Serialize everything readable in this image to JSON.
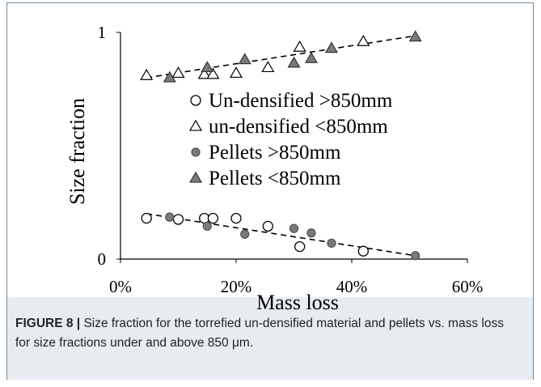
{
  "figure": {
    "caption_label": "FIGURE 8 |",
    "caption_text": "Size fraction for the torrefied un-densified material and pellets vs. mass loss for size fractions under and above 850 μm."
  },
  "chart_data": {
    "type": "scatter",
    "xlabel": "Mass loss",
    "ylabel": "Size fraction",
    "xlim": [
      0,
      60
    ],
    "ylim": [
      0,
      1
    ],
    "x_ticks": [
      "0%",
      "20%",
      "40%",
      "60%"
    ],
    "x_tick_values": [
      0,
      20,
      40,
      60
    ],
    "y_ticks": [
      "0",
      "1"
    ],
    "y_tick_values": [
      0,
      1
    ],
    "grid": false,
    "legend_position": "center",
    "series": [
      {
        "name": "Un-densified >850mm",
        "marker": "circle-open",
        "color": "#000000",
        "points": [
          [
            4.5,
            0.18
          ],
          [
            10,
            0.175
          ],
          [
            14.5,
            0.18
          ],
          [
            16,
            0.18
          ],
          [
            20,
            0.18
          ],
          [
            25.5,
            0.145
          ],
          [
            31,
            0.055
          ],
          [
            42,
            0.035
          ]
        ]
      },
      {
        "name": "un-densified <850mm",
        "marker": "triangle-open",
        "color": "#000000",
        "points": [
          [
            4.5,
            0.81
          ],
          [
            10,
            0.82
          ],
          [
            14.5,
            0.815
          ],
          [
            16,
            0.815
          ],
          [
            20,
            0.82
          ],
          [
            25.5,
            0.845
          ],
          [
            31,
            0.935
          ],
          [
            42,
            0.96
          ]
        ]
      },
      {
        "name": "Pellets >850mm",
        "marker": "circle-filled",
        "color": "#7a7a7a",
        "points": [
          [
            8.5,
            0.185
          ],
          [
            15,
            0.145
          ],
          [
            21.5,
            0.11
          ],
          [
            30,
            0.135
          ],
          [
            33,
            0.115
          ],
          [
            36.5,
            0.07
          ],
          [
            51,
            0.015
          ]
        ]
      },
      {
        "name": "Pellets <850mm",
        "marker": "triangle-filled",
        "color": "#7a7a7a",
        "points": [
          [
            8.5,
            0.8
          ],
          [
            15,
            0.845
          ],
          [
            21.5,
            0.88
          ],
          [
            30,
            0.865
          ],
          [
            33,
            0.885
          ],
          [
            36.5,
            0.93
          ],
          [
            51,
            0.98
          ]
        ]
      }
    ],
    "trendlines": [
      {
        "style": "dashed",
        "from": [
          4.5,
          0.8
        ],
        "to": [
          51,
          0.985
        ]
      },
      {
        "style": "dashed",
        "from": [
          4.5,
          0.2
        ],
        "to": [
          51,
          0.015
        ]
      }
    ]
  }
}
